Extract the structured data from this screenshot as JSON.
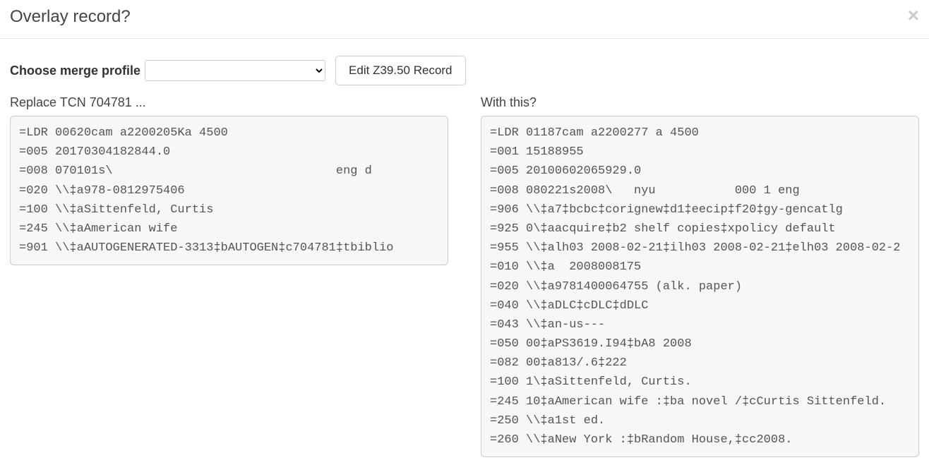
{
  "modal": {
    "title": "Overlay record?"
  },
  "controls": {
    "merge_label": "Choose merge profile",
    "merge_selected": "",
    "edit_button_label": "Edit Z39.50 Record"
  },
  "left": {
    "heading": "Replace TCN 704781 ...",
    "record_text": "=LDR 00620cam a2200205Ka 4500\n=005 20170304182844.0\n=008 070101s\\                               eng d\n=020 \\\\‡a978-0812975406\n=100 \\\\‡aSittenfeld, Curtis\n=245 \\\\‡aAmerican wife\n=901 \\\\‡aAUTOGENERATED-3313‡bAUTOGEN‡c704781‡tbiblio"
  },
  "right": {
    "heading": "With this?",
    "record_text": "=LDR 01187cam a2200277 a 4500\n=001 15188955\n=005 20100602065929.0\n=008 080221s2008\\   nyu           000 1 eng\n=906 \\\\‡a7‡bcbc‡corignew‡d1‡eecip‡f20‡gy-gencatlg\n=925 0\\‡aacquire‡b2 shelf copies‡xpolicy default\n=955 \\\\‡alh03 2008-02-21‡ilh03 2008-02-21‡elh03 2008-02-2\n=010 \\\\‡a  2008008175\n=020 \\\\‡a9781400064755 (alk. paper)\n=040 \\\\‡aDLC‡cDLC‡dDLC\n=043 \\\\‡an-us---\n=050 00‡aPS3619.I94‡bA8 2008\n=082 00‡a813/.6‡222\n=100 1\\‡aSittenfeld, Curtis.\n=245 10‡aAmerican wife :‡ba novel /‡cCurtis Sittenfeld.\n=250 \\\\‡a1st ed.\n=260 \\\\‡aNew York :‡bRandom House,‡cc2008."
  }
}
